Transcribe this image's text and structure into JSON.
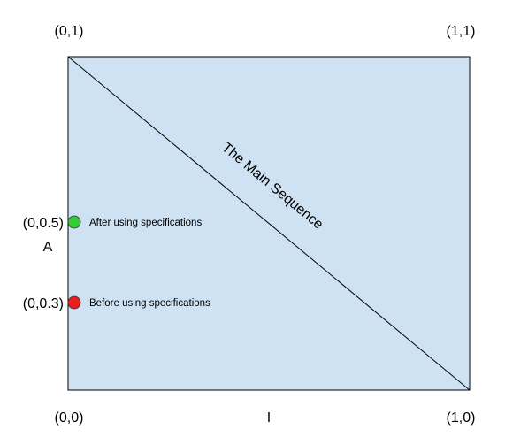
{
  "chart_data": {
    "type": "scatter",
    "xlabel": "I",
    "ylabel": "A",
    "xlim": [
      0,
      1
    ],
    "ylim": [
      0,
      1
    ],
    "corner_labels": {
      "top_left": "(0,1)",
      "top_right": "(1,1)",
      "bottom_left": "(0,0)",
      "bottom_right": "(1,0)"
    },
    "main_sequence": {
      "label": "The Main Sequence",
      "from": [
        0,
        1
      ],
      "to": [
        1,
        0
      ],
      "color": "#000000"
    },
    "points": [
      {
        "x": 0,
        "y": 0.5,
        "tick_label": "(0,0.5)",
        "label": "After using specifications",
        "color": "#33cc33"
      },
      {
        "x": 0,
        "y": 0.3,
        "tick_label": "(0,0.3)",
        "label": "Before using specifications",
        "color": "#ee1c1c"
      }
    ],
    "grid": false,
    "plot_background": "#cfe2f3",
    "plot_border": "#000000"
  }
}
